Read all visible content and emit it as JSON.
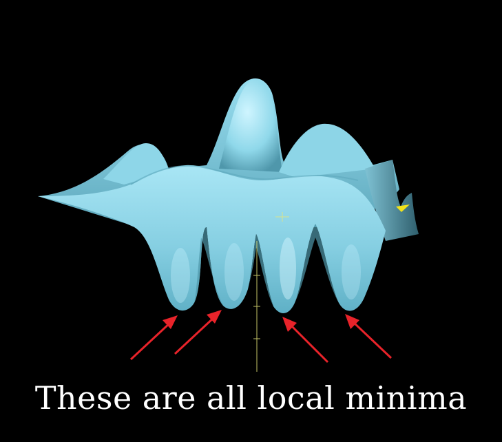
{
  "caption": "These are all local minima",
  "colors": {
    "background": "#000000",
    "surface": "#8fd8ea",
    "surface_shadow": "#3f7f92",
    "surface_highlight": "#c9f3ff",
    "arrow": "#e8232a",
    "axis": "#e6e67a",
    "caption": "#ffffff"
  },
  "annotations": {
    "arrows": [
      {
        "label": "minimum-1"
      },
      {
        "label": "minimum-2"
      },
      {
        "label": "minimum-3"
      },
      {
        "label": "minimum-4"
      }
    ]
  }
}
